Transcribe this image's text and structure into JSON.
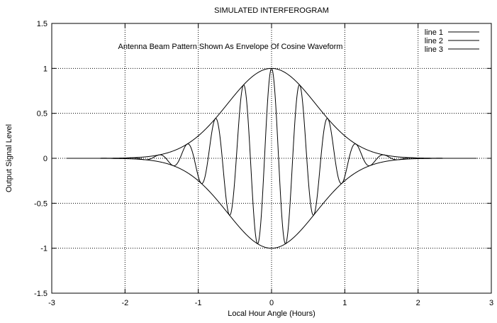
{
  "chart_data": {
    "type": "line",
    "title": "SIMULATED INTERFEROGRAM",
    "annotation": "Antenna Beam Pattern Shown As Envelope Of Cosine Waveform",
    "xlabel": "Local Hour Angle (Hours)",
    "ylabel": "Output Signal Level",
    "xlim": [
      -3,
      3
    ],
    "ylim": [
      -1.5,
      1.5
    ],
    "xticks": [
      -3,
      -2,
      -1,
      0,
      1,
      2,
      3
    ],
    "yticks": [
      -1.5,
      -1,
      -0.5,
      0,
      0.5,
      1,
      1.5
    ],
    "xtick_labels": [
      "-3",
      "-2",
      "-1",
      "0",
      "1",
      "2",
      "3"
    ],
    "ytick_labels": [
      "-1.5",
      "-1",
      "-0.5",
      "0",
      "0.5",
      "1",
      "1.5"
    ],
    "grid": true,
    "legend_position": "top-right",
    "x_range": [
      -2.8,
      2.8
    ],
    "series": [
      {
        "name": "line 1",
        "function": "cos(2*pi*2.6*x) * exp(-x^2/0.72)"
      },
      {
        "name": "line 2",
        "function": "exp(-x^2/0.72)"
      },
      {
        "name": "line 3",
        "function": "-exp(-x^2/0.72)"
      }
    ],
    "series_params": {
      "envelope_amplitude": 1,
      "envelope_width_sq": 0.72,
      "cosine_cycles_per_hour": 2.6
    }
  },
  "colors": {
    "line": "#000000",
    "grid": "#000000",
    "background": "#ffffff"
  }
}
